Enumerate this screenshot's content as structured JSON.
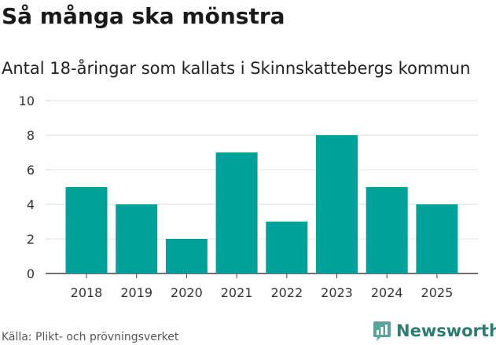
{
  "title": "Så många ska mönstra",
  "subtitle": "Antal 18-åringar som kallats i Skinnskattebergs kommun",
  "source": "Källa: Plikt- och prövningsverket",
  "brand": {
    "name": "Newsworthy",
    "color": "#2e7b72"
  },
  "chart_data": {
    "type": "bar",
    "categories": [
      "2018",
      "2019",
      "2020",
      "2021",
      "2022",
      "2023",
      "2024",
      "2025"
    ],
    "values": [
      5,
      4,
      2,
      7,
      3,
      8,
      5,
      4
    ],
    "ylim": [
      0,
      10
    ],
    "yticks": [
      0,
      2,
      4,
      6,
      8,
      10
    ],
    "grid": true,
    "bar_color": "#00a19a"
  }
}
